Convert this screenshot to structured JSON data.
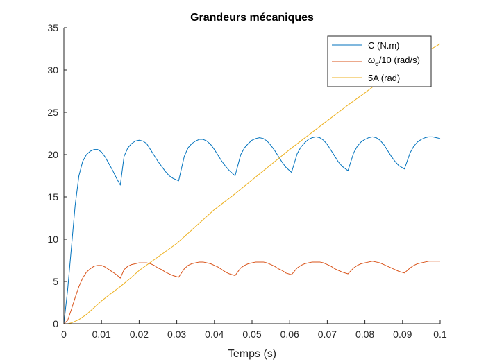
{
  "chart_data": {
    "type": "line",
    "title": "Grandeurs mécaniques",
    "xlabel": "Temps (s)",
    "ylabel": "",
    "xlim": [
      0,
      0.1
    ],
    "ylim": [
      0,
      35
    ],
    "xticks": [
      0,
      0.01,
      0.02,
      0.03,
      0.04,
      0.05,
      0.06,
      0.07,
      0.08,
      0.09,
      0.1
    ],
    "xtick_labels": [
      "0",
      "0.01",
      "0.02",
      "0.03",
      "0.04",
      "0.05",
      "0.06",
      "0.07",
      "0.08",
      "0.09",
      "0.1"
    ],
    "yticks": [
      0,
      5,
      10,
      15,
      20,
      25,
      30,
      35
    ],
    "ytick_labels": [
      "0",
      "5",
      "10",
      "15",
      "20",
      "25",
      "30",
      "35"
    ],
    "grid": false,
    "legend_position": "top-right",
    "legend_labels": {
      "c": "C (N.m)",
      "omega_symbol": "ω",
      "omega_sub": "e",
      "omega_rest": "/10 (rad/s)",
      "a": "5A (rad)"
    },
    "series": [
      {
        "name": "C (N.m)",
        "color": "#0072BD",
        "x": [
          0,
          0.001,
          0.002,
          0.003,
          0.004,
          0.005,
          0.006,
          0.007,
          0.008,
          0.009,
          0.01,
          0.011,
          0.012,
          0.013,
          0.014,
          0.015,
          0.016,
          0.017,
          0.018,
          0.019,
          0.02,
          0.021,
          0.022,
          0.023,
          0.024,
          0.025,
          0.026,
          0.027,
          0.028,
          0.029,
          0.0305,
          0.032,
          0.033,
          0.034,
          0.035,
          0.036,
          0.037,
          0.038,
          0.039,
          0.04,
          0.041,
          0.042,
          0.043,
          0.044,
          0.0455,
          0.047,
          0.048,
          0.049,
          0.05,
          0.051,
          0.052,
          0.053,
          0.054,
          0.055,
          0.056,
          0.057,
          0.058,
          0.059,
          0.0605,
          0.062,
          0.063,
          0.064,
          0.065,
          0.066,
          0.067,
          0.068,
          0.069,
          0.07,
          0.071,
          0.072,
          0.073,
          0.074,
          0.0755,
          0.077,
          0.078,
          0.079,
          0.08,
          0.081,
          0.082,
          0.083,
          0.084,
          0.085,
          0.086,
          0.087,
          0.088,
          0.089,
          0.0905,
          0.092,
          0.093,
          0.094,
          0.095,
          0.096,
          0.097,
          0.098,
          0.099,
          0.1
        ],
        "y": [
          0,
          4,
          9,
          14,
          17.5,
          19.2,
          20.0,
          20.4,
          20.6,
          20.6,
          20.3,
          19.7,
          18.9,
          18.1,
          17.2,
          16.4,
          19.8,
          20.8,
          21.3,
          21.6,
          21.7,
          21.6,
          21.3,
          20.6,
          19.9,
          19.2,
          18.6,
          18.0,
          17.5,
          17.2,
          16.9,
          19.8,
          20.8,
          21.3,
          21.6,
          21.8,
          21.8,
          21.6,
          21.2,
          20.6,
          19.9,
          19.2,
          18.6,
          18.1,
          17.5,
          20.0,
          20.8,
          21.3,
          21.7,
          21.9,
          22.0,
          21.9,
          21.6,
          21.1,
          20.5,
          19.8,
          19.1,
          18.5,
          17.9,
          20.1,
          20.9,
          21.4,
          21.8,
          22.0,
          22.1,
          22.0,
          21.7,
          21.2,
          20.5,
          19.8,
          19.1,
          18.6,
          18.1,
          20.2,
          21.0,
          21.5,
          21.8,
          22.0,
          22.1,
          22.0,
          21.7,
          21.2,
          20.5,
          19.8,
          19.2,
          18.7,
          18.3,
          20.2,
          21.0,
          21.5,
          21.8,
          22.0,
          22.1,
          22.1,
          22.0,
          21.9
        ]
      },
      {
        "name": "ωe/10 (rad/s)",
        "color": "#D95319",
        "x": [
          0,
          0.001,
          0.002,
          0.003,
          0.004,
          0.005,
          0.006,
          0.007,
          0.008,
          0.009,
          0.01,
          0.011,
          0.012,
          0.013,
          0.014,
          0.015,
          0.016,
          0.017,
          0.018,
          0.019,
          0.02,
          0.021,
          0.022,
          0.023,
          0.024,
          0.025,
          0.026,
          0.027,
          0.028,
          0.029,
          0.0305,
          0.032,
          0.033,
          0.034,
          0.035,
          0.036,
          0.037,
          0.038,
          0.039,
          0.04,
          0.041,
          0.042,
          0.043,
          0.044,
          0.0455,
          0.047,
          0.048,
          0.049,
          0.05,
          0.051,
          0.052,
          0.053,
          0.054,
          0.055,
          0.056,
          0.057,
          0.058,
          0.059,
          0.0605,
          0.062,
          0.063,
          0.064,
          0.065,
          0.066,
          0.067,
          0.068,
          0.069,
          0.07,
          0.071,
          0.072,
          0.073,
          0.074,
          0.0755,
          0.077,
          0.078,
          0.079,
          0.08,
          0.081,
          0.082,
          0.083,
          0.084,
          0.085,
          0.086,
          0.087,
          0.088,
          0.089,
          0.0905,
          0.092,
          0.093,
          0.094,
          0.095,
          0.096,
          0.097,
          0.098,
          0.099,
          0.1
        ],
        "y": [
          0,
          0.4,
          1.7,
          3.1,
          4.4,
          5.4,
          6.1,
          6.5,
          6.8,
          6.9,
          6.9,
          6.7,
          6.4,
          6.1,
          5.8,
          5.4,
          6.4,
          6.8,
          7.0,
          7.1,
          7.2,
          7.2,
          7.2,
          7.1,
          6.9,
          6.6,
          6.4,
          6.1,
          5.9,
          5.7,
          5.5,
          6.5,
          6.9,
          7.1,
          7.2,
          7.3,
          7.3,
          7.2,
          7.1,
          6.9,
          6.7,
          6.4,
          6.1,
          5.9,
          5.7,
          6.6,
          6.9,
          7.1,
          7.2,
          7.3,
          7.3,
          7.3,
          7.2,
          7.0,
          6.8,
          6.5,
          6.3,
          6.0,
          5.8,
          6.6,
          6.9,
          7.1,
          7.2,
          7.3,
          7.3,
          7.3,
          7.2,
          7.0,
          6.8,
          6.5,
          6.3,
          6.1,
          5.9,
          6.6,
          6.9,
          7.1,
          7.2,
          7.3,
          7.4,
          7.3,
          7.2,
          7.0,
          6.8,
          6.6,
          6.4,
          6.2,
          6.0,
          6.6,
          6.9,
          7.1,
          7.2,
          7.3,
          7.4,
          7.4,
          7.4,
          7.4
        ]
      },
      {
        "name": "5A (rad)",
        "color": "#EDB120",
        "x": [
          0,
          0.001,
          0.002,
          0.004,
          0.006,
          0.008,
          0.01,
          0.012,
          0.015,
          0.018,
          0.02,
          0.025,
          0.03,
          0.035,
          0.04,
          0.045,
          0.05,
          0.055,
          0.06,
          0.065,
          0.07,
          0.075,
          0.08,
          0.085,
          0.09,
          0.095,
          0.1
        ],
        "y": [
          0,
          0.0,
          0.1,
          0.5,
          1.1,
          1.9,
          2.7,
          3.4,
          4.4,
          5.5,
          6.3,
          7.9,
          9.5,
          11.5,
          13.5,
          15.2,
          17.0,
          18.8,
          20.6,
          22.3,
          24.0,
          25.7,
          27.3,
          29.0,
          30.5,
          31.8,
          33.1
        ]
      }
    ]
  }
}
